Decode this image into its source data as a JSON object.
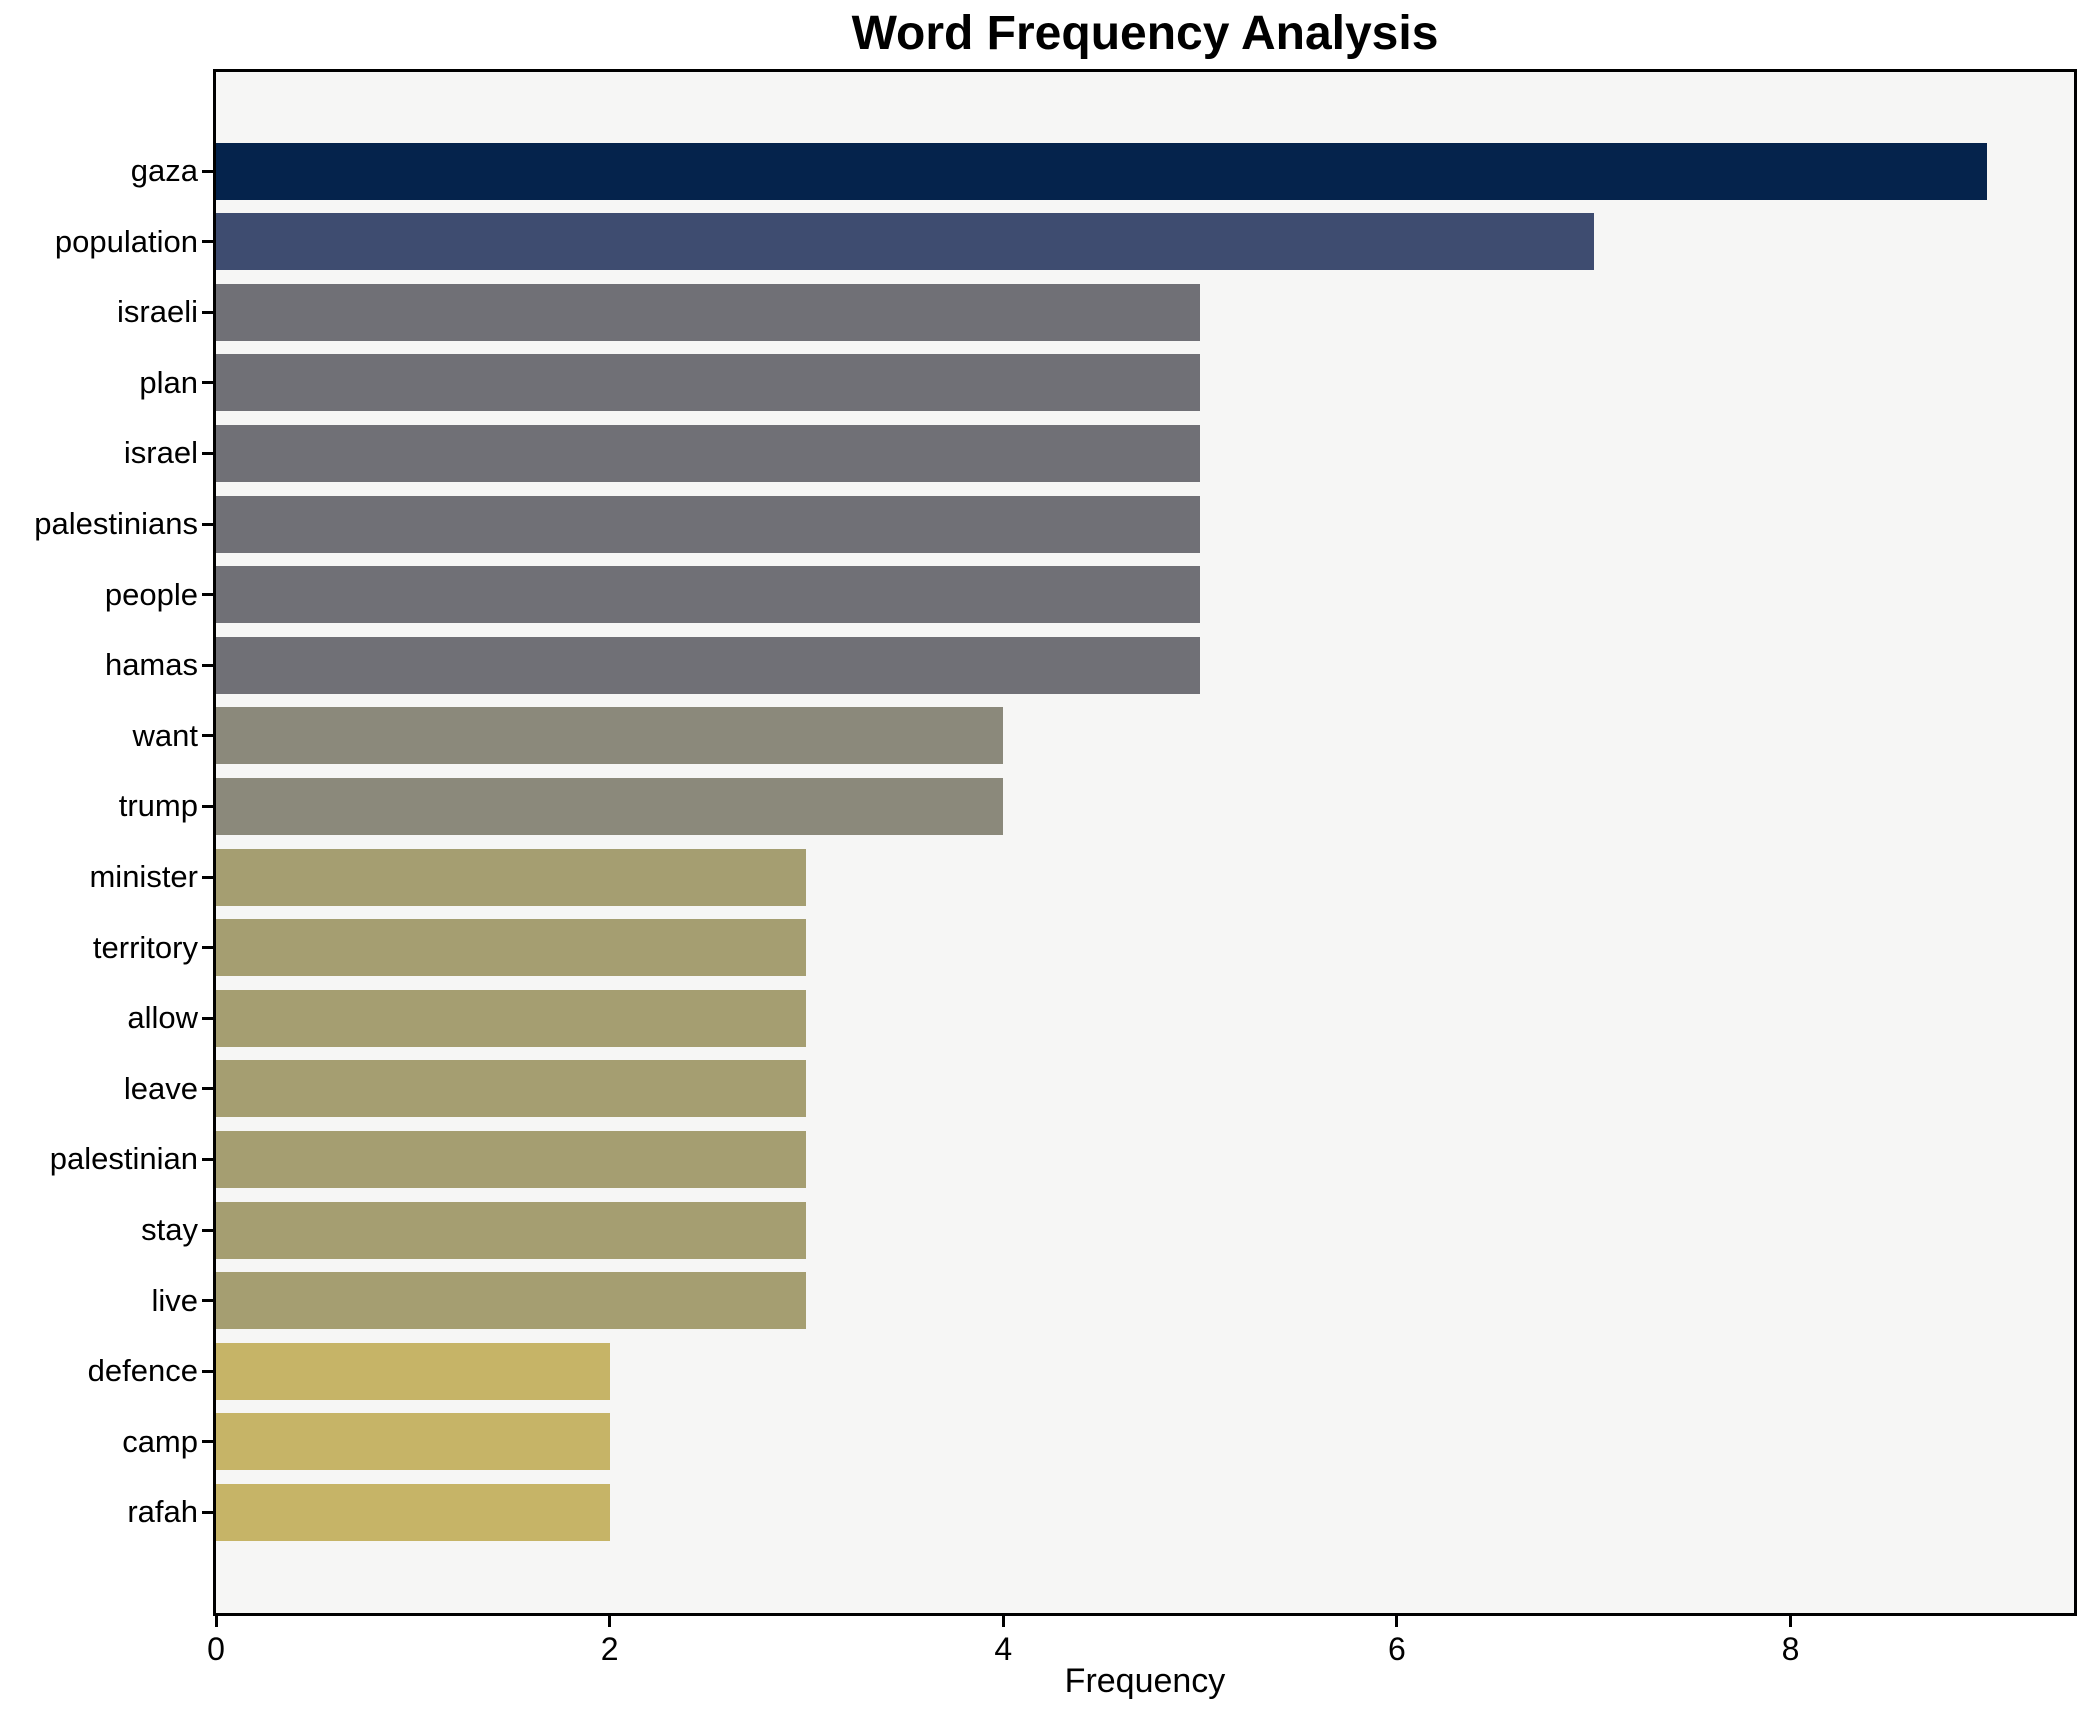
{
  "chart_data": {
    "type": "bar",
    "orientation": "horizontal",
    "title": "Word Frequency Analysis",
    "xlabel": "Frequency",
    "ylabel": "",
    "categories": [
      "gaza",
      "population",
      "israeli",
      "plan",
      "israel",
      "palestinians",
      "people",
      "hamas",
      "want",
      "trump",
      "minister",
      "territory",
      "allow",
      "leave",
      "palestinian",
      "stay",
      "live",
      "defence",
      "camp",
      "rafah"
    ],
    "values": [
      9,
      7,
      5,
      5,
      5,
      5,
      5,
      5,
      4,
      4,
      3,
      3,
      3,
      3,
      3,
      3,
      3,
      2,
      2,
      2
    ],
    "bar_colors": [
      "#05234c",
      "#3e4c70",
      "#707076",
      "#707076",
      "#707076",
      "#707076",
      "#707076",
      "#707076",
      "#8b897b",
      "#8b897b",
      "#a59e71",
      "#a59e71",
      "#a59e71",
      "#a59e71",
      "#a59e71",
      "#a59e71",
      "#a59e71",
      "#c6b467",
      "#c6b467",
      "#c6b467"
    ],
    "xlim": [
      0,
      9.44
    ],
    "xticks": [
      0,
      2,
      4,
      6,
      8
    ],
    "grid": false,
    "legend": null,
    "plot_background": "#f6f6f5",
    "figure_background": "#ffffff",
    "axis_color": "#000000"
  }
}
